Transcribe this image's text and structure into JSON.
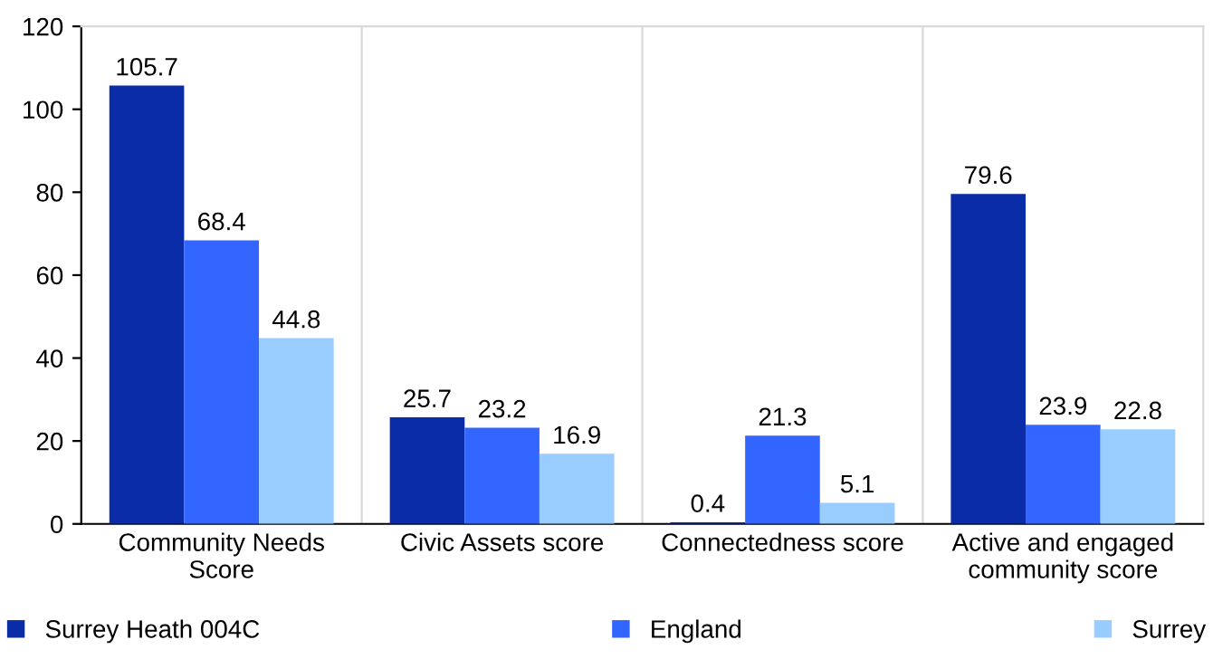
{
  "chart_data": {
    "type": "bar",
    "categories": [
      "Community Needs\nScore",
      "Civic Assets score",
      "Connectedness score",
      "Active and engaged\ncommunity score"
    ],
    "series": [
      {
        "name": "Surrey Heath 004C",
        "color": "#0a2ca6",
        "values": [
          105.7,
          25.7,
          0.4,
          79.6
        ]
      },
      {
        "name": "England",
        "color": "#3366ff",
        "values": [
          68.4,
          23.2,
          21.3,
          23.9
        ]
      },
      {
        "name": "Surrey",
        "color": "#99ccff",
        "values": [
          44.8,
          16.9,
          5.1,
          22.8
        ]
      }
    ],
    "ylim": [
      0,
      120
    ],
    "yticks": [
      0,
      20,
      40,
      60,
      80,
      100,
      120
    ],
    "grid": "x",
    "legend": "bottom",
    "data_labels": true
  }
}
